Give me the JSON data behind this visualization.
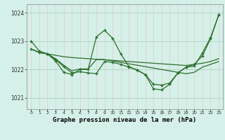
{
  "title": "Graphe pression niveau de la mer (hPa)",
  "background_color": "#d4f0e8",
  "grid_color_v": "#e8c8c8",
  "grid_color_h": "#b0d8c8",
  "line_color": "#2d6e2d",
  "x_labels": [
    "0",
    "1",
    "2",
    "3",
    "4",
    "5",
    "6",
    "7",
    "8",
    "9",
    "10",
    "11",
    "12",
    "13",
    "14",
    "15",
    "16",
    "17",
    "18",
    "19",
    "20",
    "21",
    "22",
    "23"
  ],
  "ylim": [
    1020.6,
    1024.3
  ],
  "yticks": [
    1021,
    1022,
    1023,
    1024
  ],
  "line1": [
    1023.0,
    1022.65,
    1022.55,
    1022.3,
    1021.9,
    1021.82,
    1022.0,
    1022.0,
    1023.15,
    1023.38,
    1023.1,
    1022.55,
    1022.1,
    1021.98,
    1021.82,
    1021.32,
    1021.28,
    1021.48,
    1021.88,
    1022.08,
    1022.12,
    1022.58,
    1023.12,
    1023.92
  ],
  "line2": [
    1022.72,
    1022.6,
    1022.55,
    1022.5,
    1022.45,
    1022.42,
    1022.4,
    1022.38,
    1022.36,
    1022.34,
    1022.32,
    1022.3,
    1022.28,
    1022.26,
    1022.24,
    1022.22,
    1022.2,
    1022.18,
    1022.16,
    1022.14,
    1022.18,
    1022.22,
    1022.28,
    1022.38
  ],
  "line3": [
    1022.72,
    1022.6,
    1022.55,
    1022.38,
    1022.15,
    1021.95,
    1022.02,
    1022.02,
    1022.35,
    1022.35,
    1022.3,
    1022.25,
    1022.2,
    1022.15,
    1022.1,
    1022.05,
    1022.0,
    1021.95,
    1021.9,
    1021.85,
    1021.9,
    1022.08,
    1022.18,
    1022.28
  ],
  "line4": [
    1022.72,
    1022.6,
    1022.55,
    1022.35,
    1022.1,
    1021.88,
    1021.92,
    1021.88,
    1021.85,
    1022.28,
    1022.25,
    1022.18,
    1022.08,
    1021.98,
    1021.82,
    1021.48,
    1021.45,
    1021.52,
    1021.88,
    1022.08,
    1022.18,
    1022.48,
    1023.08,
    1023.92
  ]
}
